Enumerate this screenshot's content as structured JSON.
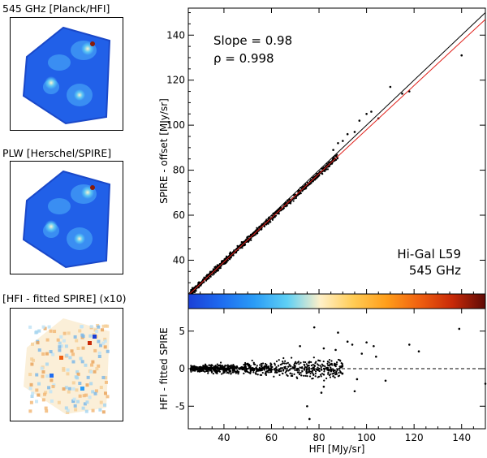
{
  "panels": [
    {
      "title": "545 GHz [Planck/HFI]"
    },
    {
      "title": "PLW [Herschel/SPIRE]"
    },
    {
      "title": "[HFI - fitted SPIRE] (x10)"
    }
  ],
  "chart_data": [
    {
      "type": "scatter",
      "title": "",
      "xlabel": "",
      "ylabel": "SPIRE - offset [MJy/sr]",
      "xlim": [
        25,
        150
      ],
      "ylim": [
        25,
        152
      ],
      "xticks": [
        "40",
        "60",
        "80",
        "100",
        "120",
        "140"
      ],
      "yticks": [
        "40",
        "60",
        "80",
        "100",
        "120",
        "140"
      ],
      "annotations": {
        "slope": "Slope =  0.98",
        "rho": "ρ = 0.998",
        "field": "Hi-Gal L59",
        "band": "545 GHz"
      },
      "lines": [
        {
          "color": "#000000",
          "slope": 1.0,
          "intercept": 0
        },
        {
          "color": "#e0201a",
          "slope": 0.98,
          "intercept": 0
        }
      ],
      "points": [
        [
          110,
          117
        ],
        [
          115,
          114
        ],
        [
          102,
          106
        ],
        [
          97,
          102
        ],
        [
          95,
          97
        ],
        [
          90,
          93
        ],
        [
          88,
          92
        ],
        [
          140,
          131
        ],
        [
          105,
          103
        ],
        [
          100,
          105
        ],
        [
          118,
          115
        ],
        [
          30,
          29
        ],
        [
          27,
          27
        ],
        [
          92,
          96
        ],
        [
          86,
          89
        ]
      ],
      "grid": false
    },
    {
      "type": "scatter",
      "title": "",
      "xlabel": "HFI [MJy/sr]",
      "ylabel": "HFI - fitted SPIRE",
      "xlim": [
        25,
        150
      ],
      "ylim": [
        -8,
        8
      ],
      "xticks": [
        "40",
        "60",
        "80",
        "100",
        "120",
        "140"
      ],
      "yticks": [
        "5",
        "0",
        "-5"
      ],
      "reference_line": {
        "y": 0,
        "style": "dashed"
      },
      "points": [
        [
          78,
          5.5
        ],
        [
          139,
          5.3
        ],
        [
          88,
          4.8
        ],
        [
          92,
          3.6
        ],
        [
          100,
          3.5
        ],
        [
          103,
          3.0
        ],
        [
          118,
          3.2
        ],
        [
          122,
          2.3
        ],
        [
          87,
          2.5
        ],
        [
          82,
          2.7
        ],
        [
          108,
          -1.6
        ],
        [
          96,
          -1.4
        ],
        [
          82,
          -2.4
        ],
        [
          75,
          -5.0
        ],
        [
          76,
          -6.7
        ],
        [
          81,
          -3.2
        ],
        [
          150,
          -2.0
        ],
        [
          98,
          2.0
        ],
        [
          72,
          3.0
        ],
        [
          95,
          -3.0
        ],
        [
          86,
          -1.0
        ],
        [
          104,
          1.6
        ],
        [
          94,
          3.2
        ]
      ]
    }
  ],
  "colorbar": {
    "colors": [
      "#1a3fd6",
      "#1e6cf0",
      "#2a9cf6",
      "#5fd0f5",
      "#fff0c8",
      "#ffcc55",
      "#ff9e1a",
      "#f06010",
      "#c82a08",
      "#5e0a06"
    ]
  }
}
